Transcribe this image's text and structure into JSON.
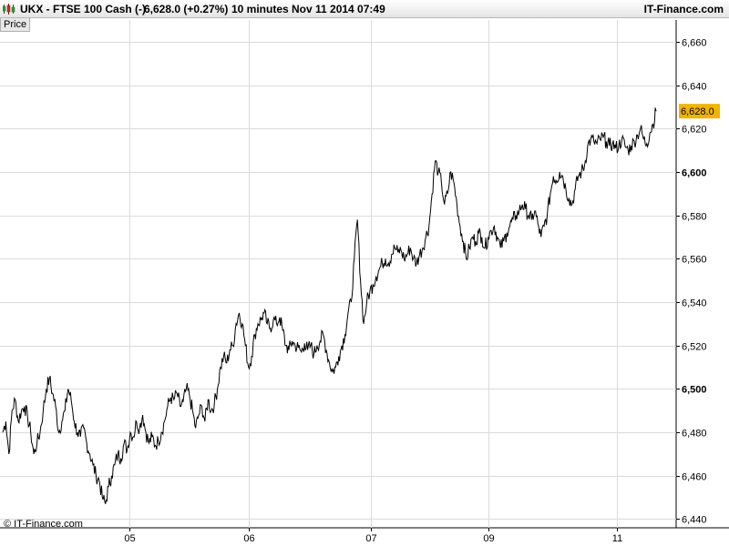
{
  "header": {
    "symbol": "UKX - FTSE 100 Cash (-)",
    "quote": "6,628.0 (+0.27%)",
    "interval": "10 minutes",
    "datetime": "Nov 11 2014 07:49",
    "brand": "IT-Finance.com"
  },
  "panel_label": "Price",
  "footer_credit": "© IT-Finance.com",
  "colors": {
    "line": "#000000",
    "grid": "#dcdcdc",
    "price_tag": "#f0b400",
    "header_icon": "#2e9e2e"
  },
  "chart_data": {
    "type": "line",
    "ylim": [
      6436,
      6670
    ],
    "yticks": [
      6440,
      6460,
      6480,
      6500,
      6520,
      6540,
      6560,
      6580,
      6600,
      6620,
      6640,
      6660
    ],
    "ytick_labels": [
      "6,440",
      "6,460",
      "6,480",
      "6,500",
      "6,520",
      "6,540",
      "6,560",
      "6,580",
      "6,600",
      "6,620",
      "6,640",
      "6,660"
    ],
    "major_yticks": [
      6500,
      6600
    ],
    "xticks": [
      "05",
      "06",
      "07",
      "09",
      "11"
    ],
    "grid": true,
    "last_value": 6628.0,
    "last_label": "6,628.0",
    "series": [
      {
        "values": [
          6480,
          6485,
          6470,
          6490,
          6495,
          6485,
          6490,
          6492,
          6487,
          6480,
          6470,
          6475,
          6480,
          6490,
          6500,
          6505,
          6498,
          6492,
          6480,
          6485,
          6490,
          6500,
          6495,
          6485,
          6480,
          6478,
          6482,
          6475,
          6470,
          6465,
          6460,
          6458,
          6450,
          6447,
          6455,
          6460,
          6465,
          6470,
          6468,
          6475,
          6472,
          6480,
          6478,
          6485,
          6482,
          6488,
          6480,
          6475,
          6478,
          6474,
          6476,
          6480,
          6485,
          6492,
          6496,
          6495,
          6498,
          6492,
          6494,
          6500,
          6497,
          6490,
          6482,
          6488,
          6492,
          6485,
          6495,
          6490,
          6493,
          6500,
          6510,
          6515,
          6512,
          6518,
          6520,
          6530,
          6535,
          6530,
          6520,
          6510,
          6515,
          6525,
          6530,
          6532,
          6535,
          6530,
          6528,
          6532,
          6530,
          6533,
          6527,
          6520,
          6518,
          6522,
          6520,
          6519,
          6517,
          6521,
          6518,
          6520,
          6516,
          6520,
          6522,
          6525,
          6518,
          6512,
          6508,
          6510,
          6515,
          6520,
          6525,
          6535,
          6540,
          6560,
          6578,
          6550,
          6530,
          6540,
          6545,
          6548,
          6552,
          6555,
          6558,
          6560,
          6558,
          6562,
          6565,
          6563,
          6564,
          6560,
          6562,
          6565,
          6560,
          6558,
          6562,
          6565,
          6570,
          6575,
          6590,
          6605,
          6600,
          6595,
          6585,
          6590,
          6600,
          6595,
          6585,
          6575,
          6568,
          6560,
          6565,
          6570,
          6568,
          6572,
          6570,
          6565,
          6570,
          6573,
          6575,
          6570,
          6565,
          6568,
          6572,
          6575,
          6578,
          6580,
          6582,
          6585,
          6583,
          6580,
          6578,
          6582,
          6576,
          6570,
          6575,
          6580,
          6590,
          6598,
          6596,
          6600,
          6598,
          6592,
          6588,
          6585,
          6592,
          6598,
          6600,
          6603,
          6612,
          6615,
          6614,
          6613,
          6615,
          6616,
          6614,
          6612,
          6613,
          6611,
          6612,
          6615,
          6612,
          6610,
          6612,
          6614,
          6617,
          6620,
          6615,
          6613,
          6618,
          6622,
          6628
        ]
      }
    ]
  }
}
